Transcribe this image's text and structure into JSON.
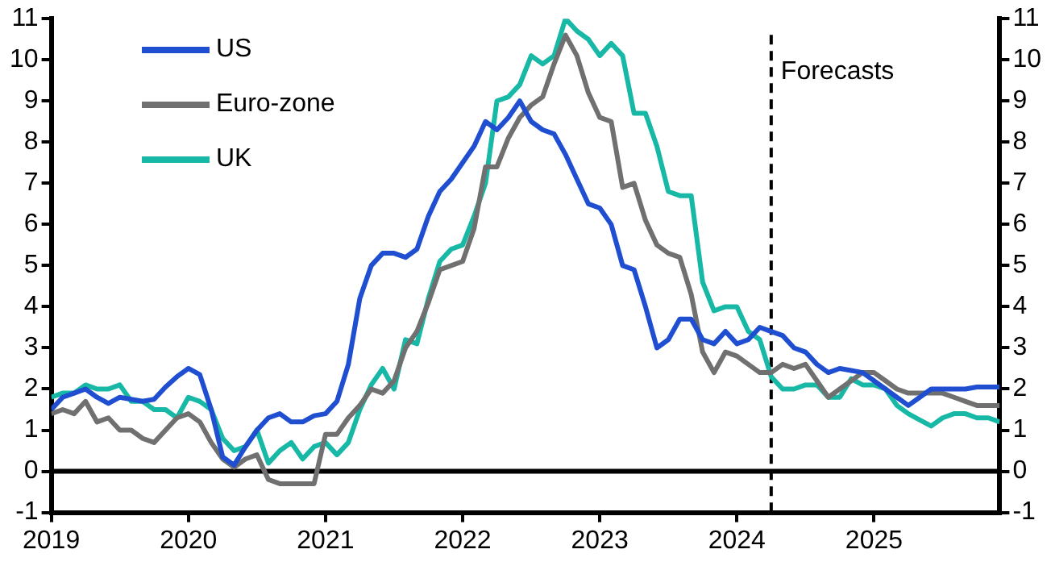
{
  "chart_data": {
    "type": "line",
    "x": [
      "2019-01",
      "2019-02",
      "2019-03",
      "2019-04",
      "2019-05",
      "2019-06",
      "2019-07",
      "2019-08",
      "2019-09",
      "2019-10",
      "2019-11",
      "2019-12",
      "2020-01",
      "2020-02",
      "2020-03",
      "2020-04",
      "2020-05",
      "2020-06",
      "2020-07",
      "2020-08",
      "2020-09",
      "2020-10",
      "2020-11",
      "2020-12",
      "2021-01",
      "2021-02",
      "2021-03",
      "2021-04",
      "2021-05",
      "2021-06",
      "2021-07",
      "2021-08",
      "2021-09",
      "2021-10",
      "2021-11",
      "2021-12",
      "2022-01",
      "2022-02",
      "2022-03",
      "2022-04",
      "2022-05",
      "2022-06",
      "2022-07",
      "2022-08",
      "2022-09",
      "2022-10",
      "2022-11",
      "2022-12",
      "2023-01",
      "2023-02",
      "2023-03",
      "2023-04",
      "2023-05",
      "2023-06",
      "2023-07",
      "2023-08",
      "2023-09",
      "2023-10",
      "2023-11",
      "2023-12",
      "2024-01",
      "2024-02",
      "2024-03",
      "2024-04",
      "2024-05",
      "2024-06",
      "2024-07",
      "2024-08",
      "2024-09",
      "2024-10",
      "2024-11",
      "2024-12",
      "2025-01",
      "2025-02",
      "2025-03",
      "2025-04",
      "2025-05",
      "2025-06",
      "2025-07",
      "2025-08",
      "2025-09",
      "2025-10",
      "2025-11",
      "2025-12"
    ],
    "series": [
      {
        "name": "US",
        "color": "#1f4fd0",
        "values": [
          1.5,
          1.8,
          1.9,
          2.0,
          1.8,
          1.65,
          1.8,
          1.75,
          1.7,
          1.75,
          2.05,
          2.3,
          2.5,
          2.35,
          1.5,
          0.35,
          0.15,
          0.6,
          1.0,
          1.3,
          1.4,
          1.2,
          1.2,
          1.35,
          1.4,
          1.7,
          2.6,
          4.2,
          5.0,
          5.3,
          5.3,
          5.2,
          5.4,
          6.2,
          6.8,
          7.1,
          7.5,
          7.9,
          8.5,
          8.3,
          8.6,
          9.0,
          8.5,
          8.3,
          8.2,
          7.7,
          7.1,
          6.5,
          6.4,
          6.0,
          5.0,
          4.9,
          4.0,
          3.0,
          3.2,
          3.7,
          3.7,
          3.2,
          3.1,
          3.4,
          3.1,
          3.2,
          3.5,
          3.4,
          3.3,
          3.0,
          2.9,
          2.6,
          2.4,
          2.5,
          2.45,
          2.4,
          2.2,
          2.0,
          1.8,
          1.6,
          1.8,
          2.0,
          2.0,
          2.0,
          2.0,
          2.05,
          2.05,
          2.05
        ]
      },
      {
        "name": "Euro-zone",
        "color": "#707070",
        "values": [
          1.4,
          1.5,
          1.4,
          1.7,
          1.2,
          1.3,
          1.0,
          1.0,
          0.8,
          0.7,
          1.0,
          1.3,
          1.4,
          1.2,
          0.7,
          0.3,
          0.1,
          0.3,
          0.4,
          -0.2,
          -0.3,
          -0.3,
          -0.3,
          -0.3,
          0.9,
          0.9,
          1.3,
          1.6,
          2.0,
          1.9,
          2.2,
          3.0,
          3.4,
          4.1,
          4.9,
          5.0,
          5.1,
          5.9,
          7.4,
          7.4,
          8.1,
          8.6,
          8.9,
          9.1,
          9.9,
          10.6,
          10.1,
          9.2,
          8.6,
          8.5,
          6.9,
          7.0,
          6.1,
          5.5,
          5.3,
          5.2,
          4.3,
          2.9,
          2.4,
          2.9,
          2.8,
          2.6,
          2.4,
          2.4,
          2.6,
          2.5,
          2.6,
          2.2,
          1.8,
          2.0,
          2.2,
          2.4,
          2.4,
          2.2,
          2.0,
          1.9,
          1.9,
          1.9,
          1.9,
          1.8,
          1.7,
          1.6,
          1.6,
          1.6
        ]
      },
      {
        "name": "UK",
        "color": "#17b8a6",
        "values": [
          1.8,
          1.9,
          1.9,
          2.1,
          2.0,
          2.0,
          2.1,
          1.7,
          1.7,
          1.5,
          1.5,
          1.3,
          1.8,
          1.7,
          1.5,
          0.8,
          0.5,
          0.6,
          1.0,
          0.2,
          0.5,
          0.7,
          0.3,
          0.6,
          0.7,
          0.4,
          0.7,
          1.5,
          2.1,
          2.5,
          2.0,
          3.2,
          3.1,
          4.2,
          5.1,
          5.4,
          5.5,
          6.2,
          7.0,
          9.0,
          9.1,
          9.4,
          10.1,
          9.9,
          10.1,
          11.0,
          10.7,
          10.5,
          10.1,
          10.4,
          10.1,
          8.7,
          8.7,
          7.9,
          6.8,
          6.7,
          6.7,
          4.6,
          3.9,
          4.0,
          4.0,
          3.4,
          3.2,
          2.3,
          2.0,
          2.0,
          2.1,
          2.1,
          1.8,
          1.8,
          2.25,
          2.1,
          2.1,
          2.0,
          1.6,
          1.4,
          1.25,
          1.1,
          1.3,
          1.4,
          1.4,
          1.3,
          1.3,
          1.2
        ]
      }
    ],
    "xlim": [
      "2019-01",
      "2025-12"
    ],
    "xticks": [
      {
        "value": "2019-01",
        "label": "2019"
      },
      {
        "value": "2020-01",
        "label": "2020"
      },
      {
        "value": "2021-01",
        "label": "2021"
      },
      {
        "value": "2022-01",
        "label": "2022"
      },
      {
        "value": "2023-01",
        "label": "2023"
      },
      {
        "value": "2024-01",
        "label": "2024"
      },
      {
        "value": "2025-01",
        "label": "2025"
      }
    ],
    "ylim": [
      -1,
      11
    ],
    "yticks": [
      -1,
      0,
      1,
      2,
      3,
      4,
      5,
      6,
      7,
      8,
      9,
      10,
      11
    ],
    "y2lim": [
      -1,
      11
    ],
    "y2ticks": [
      -1,
      0,
      1,
      2,
      3,
      4,
      5,
      6,
      7,
      8,
      9,
      10,
      11
    ],
    "ref_lines": [
      {
        "axis": "y",
        "value": 0,
        "color": "#000000",
        "line_style": "solid"
      },
      {
        "axis": "x",
        "value": "2024-04",
        "label": "Forecasts",
        "color": "#000000",
        "line_style": "dashed"
      }
    ],
    "grid": false,
    "legend": "top left",
    "marker": "none",
    "line_style": "solid"
  }
}
